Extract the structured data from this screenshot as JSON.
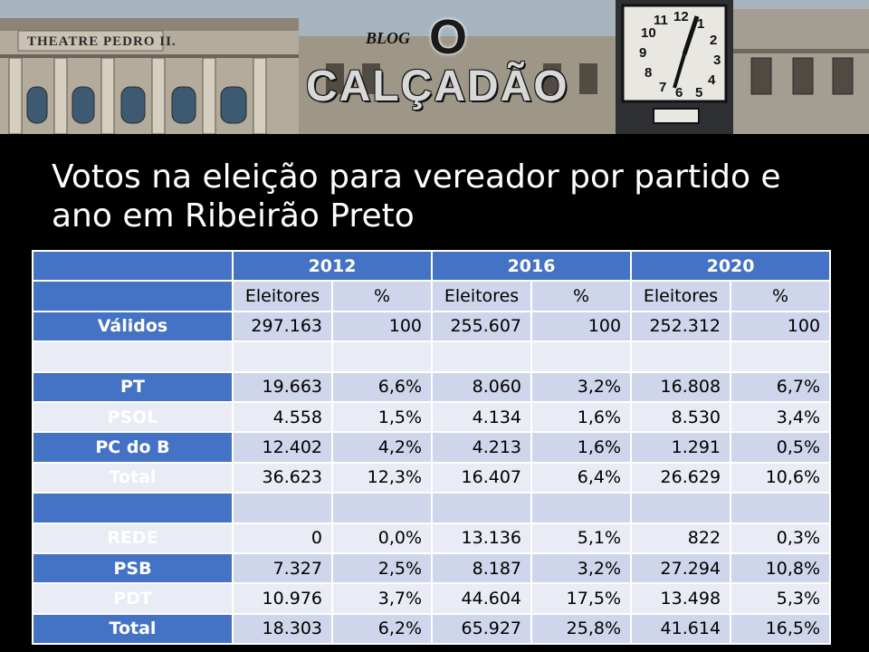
{
  "banner": {
    "theatre_name": "THEATRE PEDRO II.",
    "blog_word": "BLOG",
    "blog_o": "O",
    "blog_name": "CALÇADÃO",
    "clock_numbers": [
      "12",
      "1",
      "2",
      "3",
      "4",
      "5",
      "6",
      "7",
      "8",
      "9",
      "10",
      "11"
    ]
  },
  "title": {
    "line1": "Votos na eleição para vereador por partido e",
    "line2": "ano em Ribeirão Preto"
  },
  "table": {
    "years": [
      "2012",
      "2016",
      "2020"
    ],
    "subheaders": [
      "Eleitores",
      "%",
      "Eleitores",
      "%",
      "Eleitores",
      "%"
    ],
    "rows": [
      {
        "label": "Válidos",
        "cells": [
          "297.163",
          "100",
          "255.607",
          "100",
          "252.312",
          "100"
        ]
      },
      {
        "label": "",
        "cells": [
          "",
          "",
          "",
          "",
          "",
          ""
        ]
      },
      {
        "label": "PT",
        "cells": [
          "19.663",
          "6,6%",
          "8.060",
          "3,2%",
          "16.808",
          "6,7%"
        ]
      },
      {
        "label": "PSOL",
        "cells": [
          "4.558",
          "1,5%",
          "4.134",
          "1,6%",
          "8.530",
          "3,4%"
        ]
      },
      {
        "label": "PC do B",
        "cells": [
          "12.402",
          "4,2%",
          "4.213",
          "1,6%",
          "1.291",
          "0,5%"
        ]
      },
      {
        "label": "Total",
        "cells": [
          "36.623",
          "12,3%",
          "16.407",
          "6,4%",
          "26.629",
          "10,6%"
        ]
      },
      {
        "label": "",
        "cells": [
          "",
          "",
          "",
          "",
          "",
          ""
        ]
      },
      {
        "label": "REDE",
        "cells": [
          "0",
          "0,0%",
          "13.136",
          "5,1%",
          "822",
          "0,3%"
        ]
      },
      {
        "label": "PSB",
        "cells": [
          "7.327",
          "2,5%",
          "8.187",
          "3,2%",
          "27.294",
          "10,8%"
        ]
      },
      {
        "label": "PDT",
        "cells": [
          "10.976",
          "3,7%",
          "44.604",
          "17,5%",
          "13.498",
          "5,3%"
        ]
      },
      {
        "label": "Total",
        "cells": [
          "18.303",
          "6,2%",
          "65.927",
          "25,8%",
          "41.614",
          "16,5%"
        ]
      }
    ]
  },
  "colors": {
    "header_blue": "#4472c4",
    "band_dark": "#cfd5ea",
    "band_light": "#e9ebf5",
    "background": "#000000"
  }
}
